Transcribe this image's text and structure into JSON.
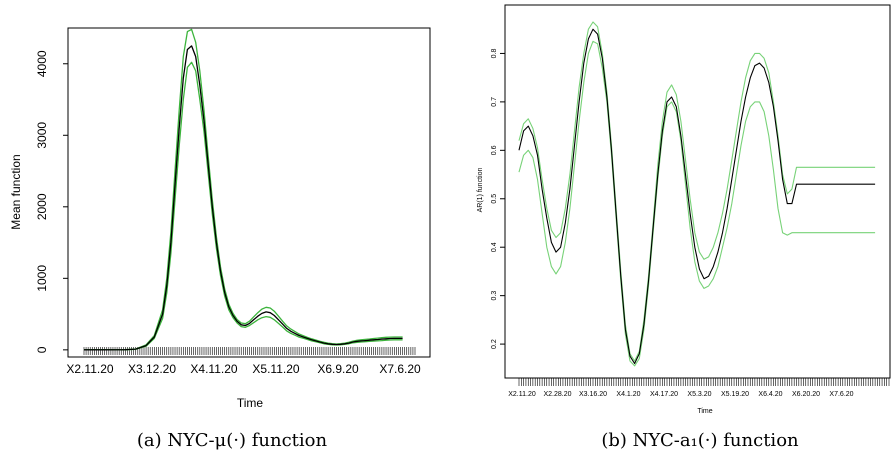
{
  "chart_data": [
    {
      "type": "line",
      "caption": "(a) NYC-μ(·) function",
      "xlabel": "Time",
      "ylabel": "Mean function",
      "x_tick_labels": [
        "X2.11.20",
        "X3.12.20",
        "X4.11.20",
        "X5.11.20",
        "X6.9.20",
        "X7.6.20"
      ],
      "y_ticks": [
        0,
        1000,
        2000,
        3000,
        4000
      ],
      "xlim": [
        0,
        160
      ],
      "ylim": [
        -100,
        4500
      ],
      "x": [
        0,
        10,
        20,
        25,
        30,
        34,
        38,
        40,
        42,
        44,
        46,
        48,
        50,
        52,
        54,
        56,
        58,
        60,
        62,
        64,
        66,
        68,
        70,
        72,
        74,
        76,
        78,
        80,
        82,
        84,
        86,
        88,
        90,
        92,
        94,
        96,
        98,
        100,
        102,
        104,
        106,
        108,
        110,
        112,
        114,
        116,
        118,
        120,
        122,
        124,
        126,
        128,
        130,
        132,
        134,
        136,
        138,
        140,
        142,
        144,
        146,
        148,
        150,
        152,
        154
      ],
      "series": [
        {
          "role": "estimate",
          "color": "#000000",
          "values": [
            0,
            0,
            2,
            10,
            60,
            180,
            500,
            900,
            1500,
            2300,
            3100,
            3800,
            4200,
            4250,
            4100,
            3700,
            3200,
            2600,
            2000,
            1500,
            1100,
            800,
            600,
            480,
            400,
            350,
            340,
            370,
            420,
            470,
            510,
            530,
            520,
            480,
            420,
            360,
            300,
            260,
            230,
            200,
            180,
            160,
            140,
            125,
            110,
            95,
            85,
            78,
            75,
            78,
            85,
            95,
            110,
            120,
            125,
            130,
            135,
            140,
            145,
            150,
            155,
            158,
            160,
            160,
            160
          ]
        },
        {
          "role": "upper-band",
          "color": "#3cb43c",
          "values": [
            0,
            0,
            3,
            12,
            70,
            200,
            560,
            1000,
            1650,
            2500,
            3350,
            4100,
            4450,
            4480,
            4300,
            3900,
            3350,
            2720,
            2100,
            1580,
            1160,
            850,
            640,
            510,
            425,
            375,
            365,
            400,
            460,
            520,
            570,
            595,
            585,
            540,
            470,
            400,
            335,
            290,
            255,
            222,
            198,
            176,
            155,
            138,
            121,
            105,
            94,
            86,
            82,
            86,
            94,
            106,
            122,
            134,
            140,
            146,
            152,
            158,
            164,
            170,
            175,
            178,
            180,
            180,
            180
          ]
        },
        {
          "role": "lower-band",
          "color": "#3cb43c",
          "values": [
            0,
            0,
            1,
            8,
            50,
            160,
            440,
            800,
            1350,
            2100,
            2850,
            3500,
            3950,
            4020,
            3900,
            3500,
            3050,
            2480,
            1900,
            1420,
            1040,
            750,
            560,
            450,
            375,
            325,
            315,
            340,
            380,
            420,
            450,
            465,
            455,
            420,
            370,
            320,
            265,
            230,
            205,
            178,
            162,
            144,
            125,
            112,
            99,
            85,
            76,
            70,
            68,
            70,
            76,
            84,
            98,
            106,
            110,
            114,
            118,
            122,
            126,
            130,
            135,
            138,
            140,
            140,
            140
          ]
        }
      ]
    },
    {
      "type": "line",
      "caption": "(b) NYC-a₁(·) function",
      "xlabel": "Time",
      "ylabel": "AR(1) function",
      "x_tick_labels": [
        "X2.11.20",
        "X2.28.20",
        "X3.16.20",
        "X4.1.20",
        "X4.17.20",
        "X5.3.20",
        "X5.19.20",
        "X6.4.20",
        "X6.20.20",
        "X7.6.20"
      ],
      "y_ticks": [
        0.2,
        0.3,
        0.4,
        0.5,
        0.6,
        0.7,
        0.8
      ],
      "xlim": [
        0,
        160
      ],
      "ylim": [
        0.13,
        0.9
      ],
      "x": [
        0,
        2,
        4,
        6,
        8,
        10,
        12,
        14,
        16,
        18,
        20,
        22,
        24,
        26,
        28,
        30,
        32,
        34,
        36,
        38,
        40,
        42,
        44,
        46,
        48,
        50,
        52,
        54,
        56,
        58,
        60,
        62,
        64,
        66,
        68,
        70,
        72,
        74,
        76,
        78,
        80,
        82,
        84,
        86,
        88,
        90,
        92,
        94,
        96,
        98,
        100,
        102,
        104,
        106,
        108,
        110,
        112,
        114,
        116,
        118,
        120,
        122,
        124,
        126,
        128,
        130,
        132,
        134,
        136,
        138,
        140,
        142,
        144,
        146,
        148,
        150,
        152,
        154
      ],
      "series": [
        {
          "role": "estimate",
          "color": "#000000",
          "values": [
            0.6,
            0.64,
            0.65,
            0.63,
            0.59,
            0.52,
            0.46,
            0.41,
            0.39,
            0.4,
            0.45,
            0.52,
            0.61,
            0.7,
            0.78,
            0.83,
            0.85,
            0.84,
            0.79,
            0.71,
            0.6,
            0.47,
            0.34,
            0.23,
            0.175,
            0.16,
            0.18,
            0.24,
            0.33,
            0.44,
            0.55,
            0.64,
            0.7,
            0.71,
            0.69,
            0.63,
            0.55,
            0.47,
            0.4,
            0.355,
            0.335,
            0.34,
            0.36,
            0.39,
            0.43,
            0.48,
            0.54,
            0.6,
            0.66,
            0.71,
            0.75,
            0.775,
            0.78,
            0.77,
            0.74,
            0.69,
            0.62,
            0.54,
            0.49,
            0.49,
            0.53,
            0.53,
            0.53,
            0.53,
            0.53,
            0.53,
            0.53,
            0.53,
            0.53,
            0.53,
            0.53,
            0.53,
            0.53,
            0.53,
            0.53,
            0.53,
            0.53,
            0.53
          ]
        },
        {
          "role": "upper-band",
          "color": "#78d278",
          "values": [
            0.62,
            0.655,
            0.665,
            0.645,
            0.605,
            0.54,
            0.48,
            0.435,
            0.42,
            0.43,
            0.48,
            0.55,
            0.64,
            0.73,
            0.8,
            0.85,
            0.865,
            0.855,
            0.8,
            0.72,
            0.61,
            0.48,
            0.35,
            0.24,
            0.18,
            0.165,
            0.185,
            0.25,
            0.34,
            0.45,
            0.57,
            0.66,
            0.72,
            0.735,
            0.715,
            0.66,
            0.58,
            0.5,
            0.43,
            0.39,
            0.375,
            0.38,
            0.4,
            0.43,
            0.47,
            0.52,
            0.58,
            0.64,
            0.7,
            0.75,
            0.785,
            0.8,
            0.8,
            0.79,
            0.76,
            0.7,
            0.63,
            0.55,
            0.51,
            0.52,
            0.565,
            0.565,
            0.565,
            0.565,
            0.565,
            0.565,
            0.565,
            0.565,
            0.565,
            0.565,
            0.565,
            0.565,
            0.565,
            0.565,
            0.565,
            0.565,
            0.565,
            0.565
          ]
        },
        {
          "role": "lower-band",
          "color": "#78d278",
          "values": [
            0.555,
            0.59,
            0.6,
            0.585,
            0.54,
            0.47,
            0.4,
            0.36,
            0.345,
            0.36,
            0.41,
            0.48,
            0.57,
            0.66,
            0.74,
            0.8,
            0.825,
            0.82,
            0.77,
            0.7,
            0.59,
            0.46,
            0.33,
            0.22,
            0.165,
            0.155,
            0.17,
            0.23,
            0.32,
            0.43,
            0.54,
            0.63,
            0.69,
            0.7,
            0.68,
            0.62,
            0.53,
            0.44,
            0.37,
            0.33,
            0.315,
            0.32,
            0.335,
            0.36,
            0.4,
            0.44,
            0.49,
            0.55,
            0.61,
            0.66,
            0.69,
            0.7,
            0.7,
            0.68,
            0.63,
            0.56,
            0.48,
            0.43,
            0.425,
            0.43,
            0.43,
            0.43,
            0.43,
            0.43,
            0.43,
            0.43,
            0.43,
            0.43,
            0.43,
            0.43,
            0.43,
            0.43,
            0.43,
            0.43,
            0.43,
            0.43,
            0.43,
            0.43
          ]
        }
      ]
    }
  ]
}
